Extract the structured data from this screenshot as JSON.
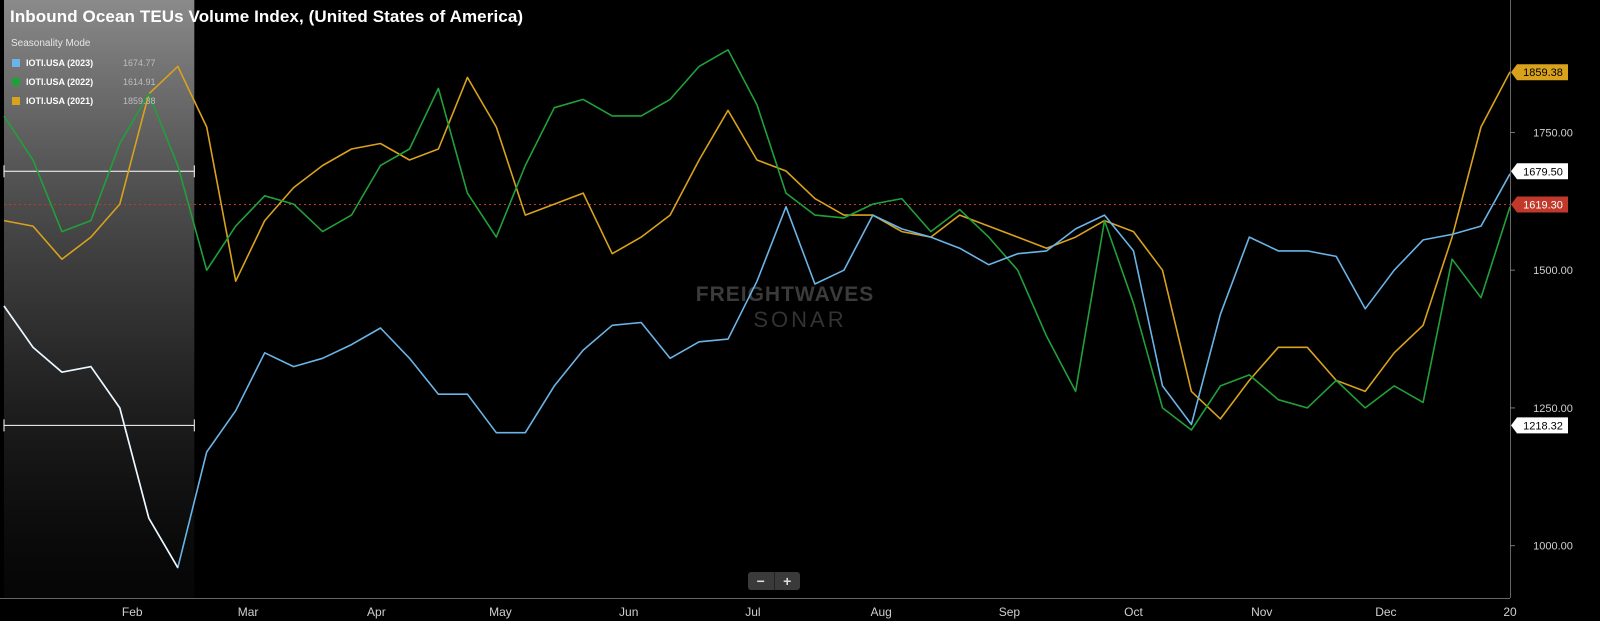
{
  "header": {
    "title": "Inbound Ocean TEUs Volume Index, (United States of America)",
    "mode_label": "Seasonality Mode"
  },
  "legend": [
    {
      "name": "IOTI.USA (2023)",
      "value": "1674.77",
      "color": "#6ab4e8"
    },
    {
      "name": "IOTI.USA (2022)",
      "value": "1614.91",
      "color": "#21a03a"
    },
    {
      "name": "IOTI.USA (2021)",
      "value": "1859.38",
      "color": "#d9a21c"
    }
  ],
  "watermark": {
    "line1": "FREIGHTWAVES",
    "line2": "SONAR"
  },
  "zoom": {
    "minus": "−",
    "plus": "+"
  },
  "chart_data": {
    "type": "line",
    "title": "Inbound Ocean TEUs Volume Index, (United States of America)",
    "x_axis": {
      "type": "date",
      "range": [
        "2023-01-01",
        "2023-12-31"
      ],
      "tick_labels": [
        "Feb",
        "Mar",
        "Apr",
        "May",
        "Jun",
        "Jul",
        "Aug",
        "Sep",
        "Oct",
        "Nov",
        "Dec",
        "20"
      ]
    },
    "y_axis": {
      "range": [
        905,
        1985
      ],
      "position": "right",
      "ticks": [
        1000,
        1250,
        1500,
        1750
      ]
    },
    "y_tick_labels": [
      "1000.00",
      "1250.00",
      "1500.00",
      "1750.00"
    ],
    "grid": false,
    "reference_line": {
      "value": 1619.3,
      "label": "1619.30",
      "color": "#c0392b"
    },
    "value_tags": [
      {
        "label": "1859.38",
        "value": 1859.38,
        "color": "#d9a21c",
        "text_color": "#000"
      },
      {
        "label": "1679.50",
        "value": 1679.5,
        "color": "#ffffff",
        "text_color": "#000"
      },
      {
        "label": "1619.30",
        "value": 1619.3,
        "color": "#c0392b",
        "text_color": "#fff"
      },
      {
        "label": "1218.32",
        "value": 1218.32,
        "color": "#ffffff",
        "text_color": "#000"
      }
    ],
    "highlight_band": {
      "x_end": "2023-02-16",
      "upper": 1679.5,
      "lower": 1218.32
    },
    "series": [
      {
        "name": "IOTI.USA (2023)",
        "color": "#6ab4e8",
        "x": [
          "2023-01-01",
          "2023-01-08",
          "2023-01-15",
          "2023-01-22",
          "2023-01-29",
          "2023-02-05",
          "2023-02-12",
          "2023-02-19",
          "2023-02-26",
          "2023-03-05",
          "2023-03-12",
          "2023-03-19",
          "2023-03-26",
          "2023-04-02",
          "2023-04-09",
          "2023-04-16",
          "2023-04-23",
          "2023-04-30",
          "2023-05-07",
          "2023-05-14",
          "2023-05-21",
          "2023-05-28",
          "2023-06-04",
          "2023-06-11",
          "2023-06-18",
          "2023-06-25",
          "2023-07-02",
          "2023-07-09",
          "2023-07-16",
          "2023-07-23",
          "2023-07-30",
          "2023-08-06",
          "2023-08-13",
          "2023-08-20",
          "2023-08-27",
          "2023-09-03",
          "2023-09-10",
          "2023-09-17",
          "2023-09-24",
          "2023-10-01",
          "2023-10-08",
          "2023-10-15",
          "2023-10-22",
          "2023-10-29",
          "2023-11-05",
          "2023-11-12",
          "2023-11-19",
          "2023-11-26",
          "2023-12-03",
          "2023-12-10",
          "2023-12-17",
          "2023-12-24",
          "2023-12-31"
        ],
        "values": [
          1435,
          1360,
          1315,
          1325,
          1250,
          1050,
          960,
          1170,
          1245,
          1350,
          1325,
          1340,
          1365,
          1395,
          1340,
          1275,
          1275,
          1205,
          1205,
          1290,
          1355,
          1400,
          1405,
          1340,
          1370,
          1375,
          1480,
          1615,
          1475,
          1500,
          1600,
          1575,
          1560,
          1540,
          1510,
          1530,
          1535,
          1575,
          1600,
          1535,
          1290,
          1220,
          1420,
          1560,
          1535,
          1535,
          1525,
          1430,
          1500,
          1555,
          1565,
          1580,
          1675
        ]
      },
      {
        "name": "IOTI.USA (2022)",
        "color": "#21a03a",
        "x": [
          "2023-01-01",
          "2023-01-08",
          "2023-01-15",
          "2023-01-22",
          "2023-01-29",
          "2023-02-05",
          "2023-02-12",
          "2023-02-19",
          "2023-02-26",
          "2023-03-05",
          "2023-03-12",
          "2023-03-19",
          "2023-03-26",
          "2023-04-02",
          "2023-04-09",
          "2023-04-16",
          "2023-04-23",
          "2023-04-30",
          "2023-05-07",
          "2023-05-14",
          "2023-05-21",
          "2023-05-28",
          "2023-06-04",
          "2023-06-11",
          "2023-06-18",
          "2023-06-25",
          "2023-07-02",
          "2023-07-09",
          "2023-07-16",
          "2023-07-23",
          "2023-07-30",
          "2023-08-06",
          "2023-08-13",
          "2023-08-20",
          "2023-08-27",
          "2023-09-03",
          "2023-09-10",
          "2023-09-17",
          "2023-09-24",
          "2023-10-01",
          "2023-10-08",
          "2023-10-15",
          "2023-10-22",
          "2023-10-29",
          "2023-11-05",
          "2023-11-12",
          "2023-11-19",
          "2023-11-26",
          "2023-12-03",
          "2023-12-10",
          "2023-12-17",
          "2023-12-24",
          "2023-12-31"
        ],
        "values": [
          1780,
          1700,
          1570,
          1590,
          1730,
          1820,
          1690,
          1500,
          1580,
          1635,
          1620,
          1570,
          1600,
          1690,
          1720,
          1830,
          1640,
          1560,
          1690,
          1795,
          1810,
          1780,
          1780,
          1810,
          1870,
          1900,
          1800,
          1640,
          1600,
          1595,
          1620,
          1630,
          1570,
          1610,
          1560,
          1500,
          1380,
          1280,
          1590,
          1440,
          1250,
          1210,
          1290,
          1310,
          1265,
          1250,
          1300,
          1250,
          1290,
          1260,
          1520,
          1450,
          1615
        ]
      },
      {
        "name": "IOTI.USA (2021)",
        "color": "#d9a21c",
        "x": [
          "2023-01-01",
          "2023-01-08",
          "2023-01-15",
          "2023-01-22",
          "2023-01-29",
          "2023-02-05",
          "2023-02-12",
          "2023-02-19",
          "2023-02-26",
          "2023-03-05",
          "2023-03-12",
          "2023-03-19",
          "2023-03-26",
          "2023-04-02",
          "2023-04-09",
          "2023-04-16",
          "2023-04-23",
          "2023-04-30",
          "2023-05-07",
          "2023-05-14",
          "2023-05-21",
          "2023-05-28",
          "2023-06-04",
          "2023-06-11",
          "2023-06-18",
          "2023-06-25",
          "2023-07-02",
          "2023-07-09",
          "2023-07-16",
          "2023-07-23",
          "2023-07-30",
          "2023-08-06",
          "2023-08-13",
          "2023-08-20",
          "2023-08-27",
          "2023-09-03",
          "2023-09-10",
          "2023-09-17",
          "2023-09-24",
          "2023-10-01",
          "2023-10-08",
          "2023-10-15",
          "2023-10-22",
          "2023-10-29",
          "2023-11-05",
          "2023-11-12",
          "2023-11-19",
          "2023-11-26",
          "2023-12-03",
          "2023-12-10",
          "2023-12-17",
          "2023-12-24",
          "2023-12-31"
        ],
        "values": [
          1590,
          1580,
          1520,
          1560,
          1620,
          1820,
          1870,
          1760,
          1480,
          1590,
          1650,
          1690,
          1720,
          1730,
          1700,
          1720,
          1850,
          1760,
          1600,
          1620,
          1640,
          1530,
          1560,
          1600,
          1700,
          1790,
          1700,
          1680,
          1630,
          1600,
          1600,
          1570,
          1560,
          1600,
          1580,
          1560,
          1540,
          1560,
          1590,
          1570,
          1500,
          1280,
          1230,
          1300,
          1360,
          1360,
          1300,
          1280,
          1350,
          1400,
          1560,
          1760,
          1860
        ]
      }
    ]
  }
}
